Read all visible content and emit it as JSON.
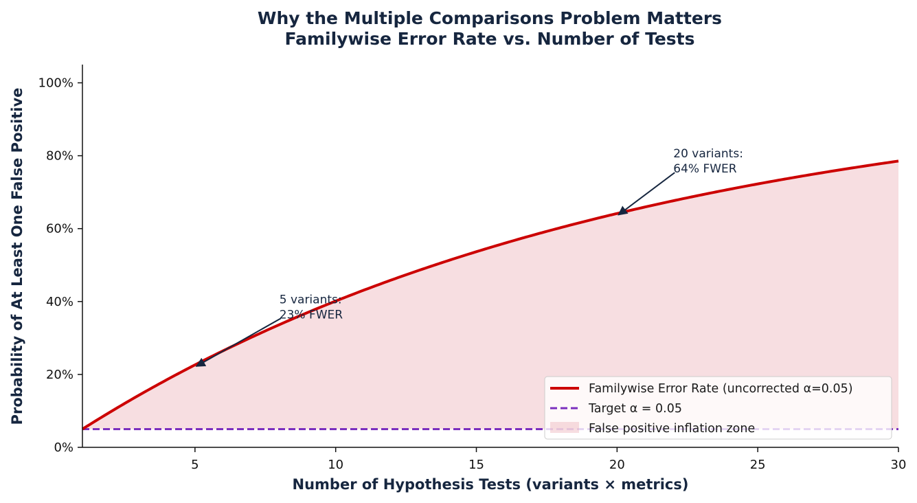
{
  "chart_data": {
    "type": "line",
    "title_line1": "Why the Multiple Comparisons Problem Matters",
    "title_line2": "Familywise Error Rate vs. Number of Tests",
    "xlabel": "Number of Hypothesis Tests (variants × metrics)",
    "ylabel": "Probability of At Least One False Positive",
    "xlim": [
      1,
      30
    ],
    "ylim": [
      0,
      1.05
    ],
    "x_ticks": [
      5,
      10,
      15,
      20,
      25,
      30
    ],
    "x_tick_labels": [
      "5",
      "10",
      "15",
      "20",
      "25",
      "30"
    ],
    "y_ticks": [
      0,
      0.2,
      0.4,
      0.6,
      0.8,
      1.0
    ],
    "y_tick_labels": [
      "0%",
      "20%",
      "40%",
      "60%",
      "80%",
      "100%"
    ],
    "alpha": 0.05,
    "series": [
      {
        "name": "Familywise Error Rate (uncorrected α=0.05)",
        "color": "#cc0000",
        "x": [
          1,
          2,
          3,
          4,
          5,
          6,
          7,
          8,
          9,
          10,
          11,
          12,
          13,
          14,
          15,
          16,
          17,
          18,
          19,
          20,
          21,
          22,
          23,
          24,
          25,
          26,
          27,
          28,
          29,
          30
        ],
        "y": [
          0.05,
          0.0975,
          0.1426,
          0.1855,
          0.2262,
          0.2649,
          0.3017,
          0.3366,
          0.3698,
          0.4013,
          0.4312,
          0.4596,
          0.4867,
          0.5123,
          0.5367,
          0.5599,
          0.5819,
          0.6028,
          0.6226,
          0.6415,
          0.6594,
          0.6765,
          0.6926,
          0.708,
          0.7226,
          0.7365,
          0.7497,
          0.7622,
          0.7741,
          0.7854
        ]
      },
      {
        "name": "Target α = 0.05",
        "color": "#7b2fbe",
        "style": "dashed",
        "y_constant": 0.05
      }
    ],
    "fill": {
      "name": "False positive inflation zone",
      "color": "#e8a0a8"
    },
    "annotations": [
      {
        "line1": "5 variants:",
        "line2": "23% FWER",
        "point_x": 5,
        "point_y": 0.2262,
        "text_x": 8,
        "text_y": 0.35
      },
      {
        "line1": "20 variants:",
        "line2": "64% FWER",
        "point_x": 20,
        "point_y": 0.6415,
        "text_x": 22,
        "text_y": 0.75
      }
    ],
    "legend_position": "lower right",
    "grid": false
  }
}
